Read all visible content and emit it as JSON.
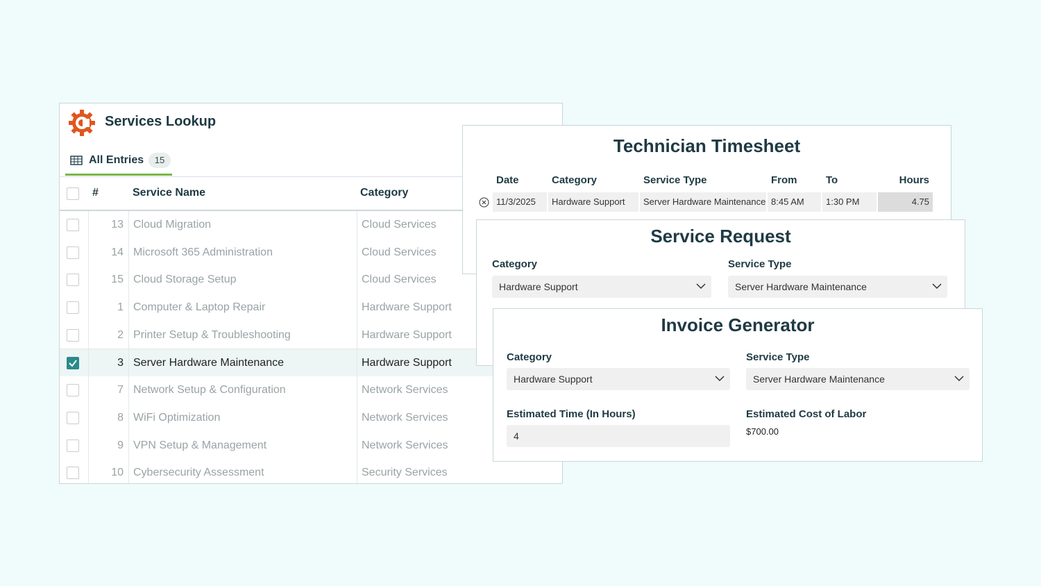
{
  "lookup": {
    "title": "Services Lookup",
    "tab": "All Entries",
    "count": 15,
    "columns": [
      "#",
      "Service Name",
      "Category"
    ],
    "rows": [
      {
        "id": 13,
        "name": "Cloud Migration",
        "category": "Cloud Services",
        "checked": false
      },
      {
        "id": 14,
        "name": "Microsoft 365 Administration",
        "category": "Cloud Services",
        "checked": false
      },
      {
        "id": 15,
        "name": "Cloud Storage Setup",
        "category": "Cloud Services",
        "checked": false
      },
      {
        "id": 1,
        "name": "Computer & Laptop Repair",
        "category": "Hardware Support",
        "checked": false
      },
      {
        "id": 2,
        "name": "Printer Setup & Troubleshooting",
        "category": "Hardware Support",
        "checked": false
      },
      {
        "id": 3,
        "name": "Server Hardware Maintenance",
        "category": "Hardware Support",
        "checked": true
      },
      {
        "id": 7,
        "name": "Network Setup & Configuration",
        "category": "Network Services",
        "checked": false
      },
      {
        "id": 8,
        "name": "WiFi Optimization",
        "category": "Network Services",
        "checked": false
      },
      {
        "id": 9,
        "name": "VPN Setup & Management",
        "category": "Network Services",
        "checked": false
      },
      {
        "id": 10,
        "name": "Cybersecurity Assessment",
        "category": "Security Services",
        "checked": false
      }
    ]
  },
  "timesheet": {
    "title": "Technician Timesheet",
    "columns": [
      "Date",
      "Category",
      "Service Type",
      "From",
      "To",
      "Hours"
    ],
    "row": [
      "11/3/2025",
      "Hardware Support",
      "Server Hardware Maintenance",
      "8:45 AM",
      "1:30 PM",
      4.75
    ]
  },
  "request": {
    "title": "Service Request",
    "fields": [
      {
        "label": "Category",
        "value": "Hardware Support"
      },
      {
        "label": "Service Type",
        "value": "Server Hardware Maintenance"
      }
    ]
  },
  "invoice": {
    "title": "Invoice Generator",
    "fields": [
      {
        "label": "Category",
        "value": "Hardware Support"
      },
      {
        "label": "Service Type",
        "value": "Server Hardware Maintenance"
      },
      {
        "label": "Estimated Time (In Hours)",
        "value": 4
      },
      {
        "label": "Estimated Cost of Labor",
        "value": "$700.00"
      }
    ]
  }
}
